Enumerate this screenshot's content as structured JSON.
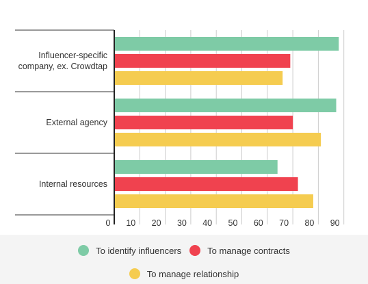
{
  "chart_data": {
    "type": "bar",
    "orientation": "horizontal",
    "categories": [
      "Influencer-specific company, ex. Crowdtap",
      "External agency",
      "Internal resources"
    ],
    "category_label_lines": [
      [
        "Influencer-specific",
        "company, ex. Crowdtap"
      ],
      [
        "External agency"
      ],
      [
        "Internal resources"
      ]
    ],
    "series": [
      {
        "name": "To identify influencers",
        "color": "#7ecba6",
        "values": [
          88,
          87,
          64
        ]
      },
      {
        "name": "To manage contracts",
        "color": "#f0424f",
        "values": [
          69,
          70,
          72
        ]
      },
      {
        "name": "To manage relationship",
        "color": "#f5cc50",
        "values": [
          66,
          81,
          78
        ]
      }
    ],
    "x_ticks": [
      0,
      10,
      20,
      30,
      40,
      50,
      60,
      70,
      80,
      90
    ],
    "xlim": [
      0,
      90
    ],
    "xlabel": "",
    "ylabel": "",
    "title": "",
    "grid": true,
    "legend_position": "bottom"
  },
  "colors": {
    "grid": "#cccccc",
    "axis": "#222222",
    "separator": "#333333",
    "text": "#333333",
    "legend_band": "#f4f4f4"
  }
}
